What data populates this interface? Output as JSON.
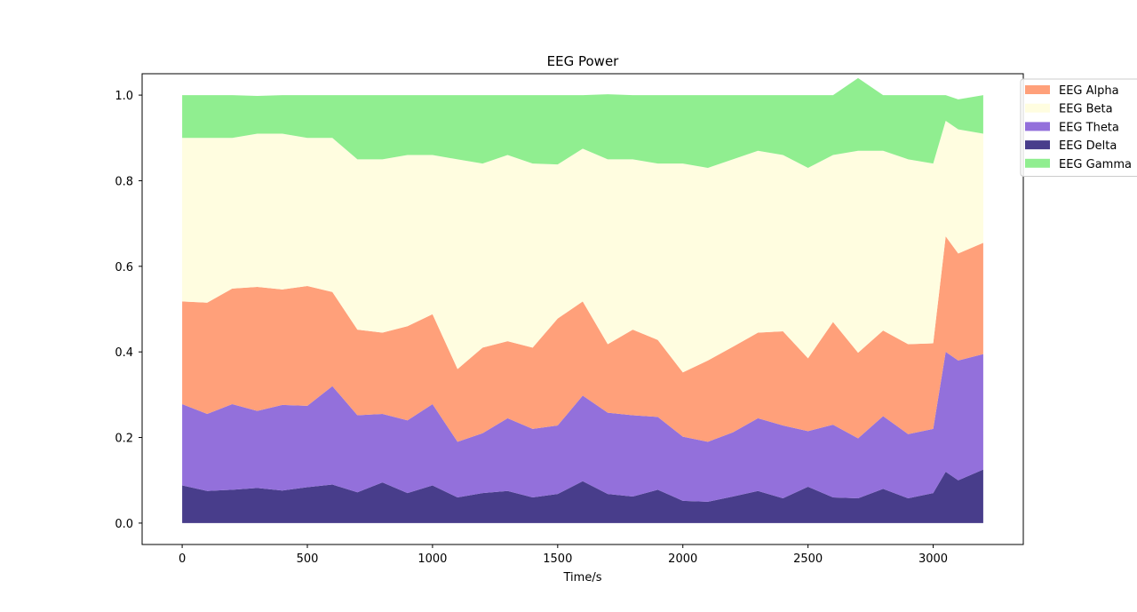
{
  "chart_data": {
    "type": "area",
    "stacked": true,
    "title": "EEG Power",
    "xlabel": "Time/s",
    "ylabel": "",
    "xlim": [
      -160,
      3360
    ],
    "ylim": [
      -0.05,
      1.05
    ],
    "xticks": [
      0,
      500,
      1000,
      1500,
      2000,
      2500,
      3000
    ],
    "xtick_labels": [
      "0",
      "500",
      "1000",
      "1500",
      "2000",
      "2500",
      "3000"
    ],
    "yticks": [
      0.0,
      0.2,
      0.4,
      0.6,
      0.8,
      1.0
    ],
    "ytick_labels": [
      "0.0",
      "0.2",
      "0.4",
      "0.6",
      "0.8",
      "1.0"
    ],
    "legend_position": "upper-right-outside",
    "grid": false,
    "x": [
      0,
      100,
      200,
      300,
      400,
      500,
      600,
      700,
      800,
      900,
      1000,
      1100,
      1200,
      1300,
      1400,
      1500,
      1600,
      1700,
      1800,
      1900,
      2000,
      2100,
      2200,
      2300,
      2400,
      2500,
      2600,
      2700,
      2800,
      2900,
      3000,
      3050,
      3100,
      3200
    ],
    "series": [
      {
        "name": "EEG Delta",
        "color": "#483d8b",
        "values": [
          0.088,
          0.075,
          0.078,
          0.082,
          0.076,
          0.084,
          0.09,
          0.072,
          0.095,
          0.07,
          0.088,
          0.06,
          0.07,
          0.075,
          0.06,
          0.068,
          0.098,
          0.068,
          0.062,
          0.078,
          0.052,
          0.05,
          0.062,
          0.075,
          0.058,
          0.085,
          0.06,
          0.058,
          0.08,
          0.058,
          0.07,
          0.12,
          0.1,
          0.125
        ]
      },
      {
        "name": "EEG Theta",
        "color": "#9370db",
        "values": [
          0.19,
          0.18,
          0.2,
          0.18,
          0.2,
          0.19,
          0.23,
          0.18,
          0.16,
          0.17,
          0.19,
          0.13,
          0.14,
          0.17,
          0.16,
          0.16,
          0.2,
          0.19,
          0.19,
          0.17,
          0.15,
          0.14,
          0.15,
          0.17,
          0.17,
          0.13,
          0.17,
          0.14,
          0.17,
          0.15,
          0.15,
          0.28,
          0.28,
          0.27
        ]
      },
      {
        "name": "EEG Alpha",
        "color": "#ffa07a",
        "values": [
          0.24,
          0.26,
          0.27,
          0.29,
          0.27,
          0.28,
          0.22,
          0.2,
          0.19,
          0.22,
          0.21,
          0.17,
          0.2,
          0.18,
          0.19,
          0.25,
          0.22,
          0.16,
          0.2,
          0.18,
          0.15,
          0.19,
          0.2,
          0.2,
          0.22,
          0.17,
          0.24,
          0.2,
          0.2,
          0.21,
          0.2,
          0.27,
          0.25,
          0.26
        ]
      },
      {
        "name": "EEG Beta",
        "color": "#fffde0",
        "values": [
          0.382,
          0.385,
          0.352,
          0.358,
          0.364,
          0.346,
          0.36,
          0.398,
          0.405,
          0.4,
          0.372,
          0.49,
          0.43,
          0.435,
          0.43,
          0.36,
          0.357,
          0.432,
          0.398,
          0.412,
          0.488,
          0.45,
          0.438,
          0.425,
          0.412,
          0.445,
          0.39,
          0.472,
          0.42,
          0.432,
          0.42,
          0.27,
          0.29,
          0.255
        ]
      },
      {
        "name": "EEG Gamma",
        "color": "#90ee90",
        "values": [
          0.1,
          0.1,
          0.1,
          0.088,
          0.09,
          0.1,
          0.1,
          0.15,
          0.15,
          0.14,
          0.14,
          0.15,
          0.16,
          0.14,
          0.16,
          0.162,
          0.125,
          0.152,
          0.15,
          0.16,
          0.16,
          0.17,
          0.15,
          0.13,
          0.14,
          0.17,
          0.14,
          0.17,
          0.13,
          0.15,
          0.16,
          0.06,
          0.07,
          0.09
        ]
      }
    ],
    "legend_order": [
      "EEG Alpha",
      "EEG Beta",
      "EEG Theta",
      "EEG Delta",
      "EEG Gamma"
    ]
  }
}
